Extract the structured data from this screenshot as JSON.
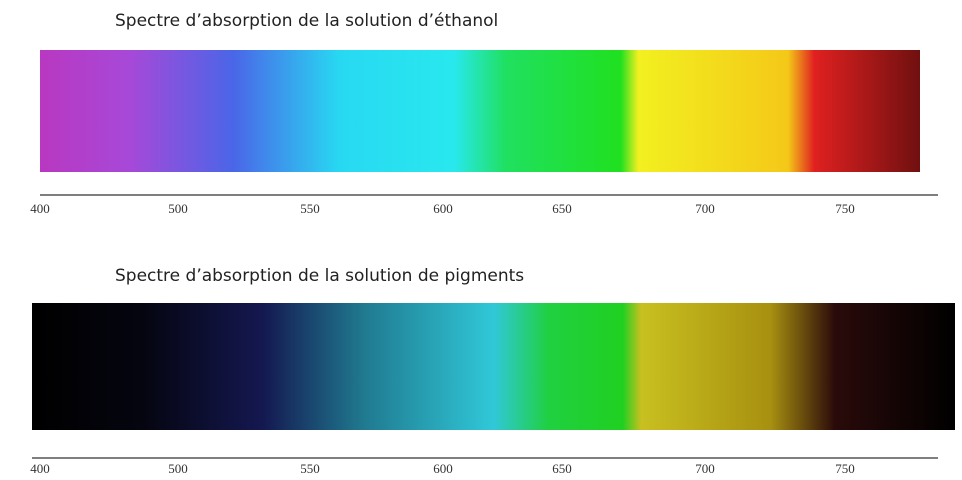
{
  "panels": [
    {
      "title": "Spectre d’absorption de la solution d’éthanol",
      "ticks": [
        "400",
        "500",
        "550",
        "600",
        "650",
        "700",
        "750"
      ]
    },
    {
      "title": "Spectre d’absorption de la solution de pigments",
      "ticks": [
        "400",
        "500",
        "550",
        "600",
        "650",
        "700",
        "750"
      ]
    }
  ]
}
